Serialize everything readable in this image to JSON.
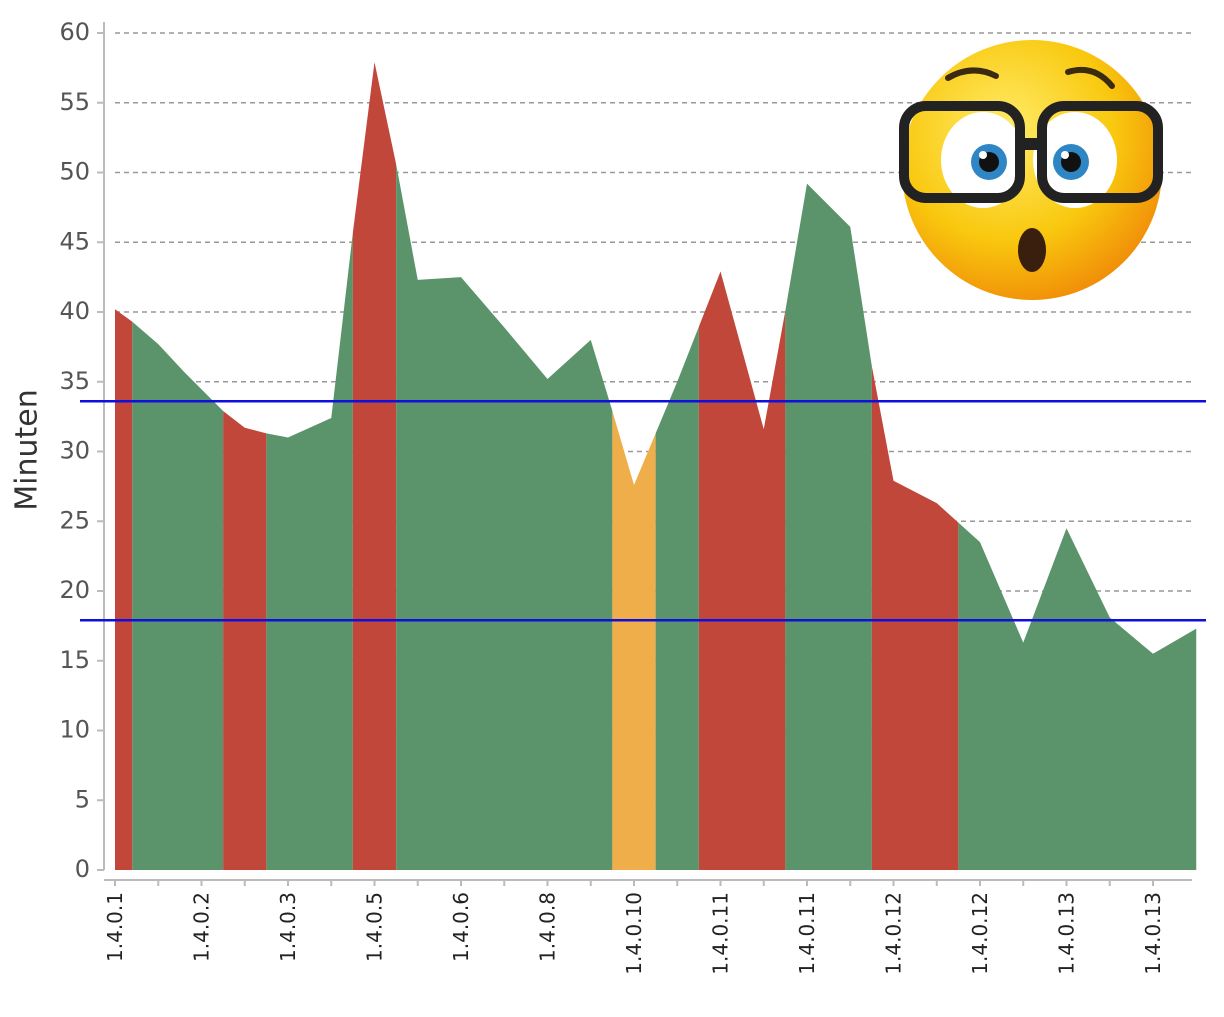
{
  "chart_data": {
    "type": "area",
    "ylabel": "Minuten",
    "xlabel": "",
    "ylim": [
      0,
      60
    ],
    "yticks": [
      0,
      5,
      10,
      15,
      20,
      25,
      30,
      35,
      40,
      45,
      50,
      55,
      60
    ],
    "grid": "horizontal dashed",
    "xtick_labels": [
      "1.4.0.1",
      "1.4.0.2",
      "1.4.0.3",
      "1.4.0.5",
      "1.4.0.6",
      "1.4.0.8",
      "1.4.0.10",
      "1.4.0.11",
      "1.4.0.11",
      "1.4.0.12",
      "1.4.0.12",
      "1.4.0.13",
      "1.4.0.13"
    ],
    "build_index": [
      0,
      0.2,
      0.5,
      0.8,
      1.25,
      1.5,
      1.75,
      2.0,
      2.5,
      2.75,
      3.0,
      3.25,
      3.5,
      4.0,
      4.5,
      5.0,
      5.5,
      5.75,
      6.0,
      6.25,
      6.5,
      7.0,
      7.5,
      7.75,
      8.0,
      8.5,
      8.75,
      9.0,
      9.5,
      10.0,
      10.5,
      11.0,
      11.5,
      12.0,
      12.5
    ],
    "minutes": [
      40.2,
      39.3,
      37.7,
      35.7,
      32.9,
      31.7,
      31.3,
      31.0,
      32.4,
      45.7,
      57.9,
      50.6,
      42.3,
      42.5,
      38.9,
      35.2,
      38.0,
      32.9,
      27.6,
      31.3,
      35.0,
      42.9,
      31.6,
      40.1,
      49.2,
      46.1,
      36.1,
      27.9,
      26.3,
      23.5,
      16.3,
      24.5,
      18.1,
      15.5,
      17.3
    ],
    "status_bands": [
      {
        "from": 0,
        "to": 0.2,
        "status": "red"
      },
      {
        "from": 0.2,
        "to": 1.25,
        "status": "green"
      },
      {
        "from": 1.25,
        "to": 1.75,
        "status": "red"
      },
      {
        "from": 1.75,
        "to": 2.75,
        "status": "green"
      },
      {
        "from": 2.75,
        "to": 3.25,
        "status": "red"
      },
      {
        "from": 3.25,
        "to": 5.75,
        "status": "green"
      },
      {
        "from": 5.75,
        "to": 6.25,
        "status": "orange"
      },
      {
        "from": 6.25,
        "to": 6.75,
        "status": "green"
      },
      {
        "from": 6.75,
        "to": 7.75,
        "status": "red"
      },
      {
        "from": 7.75,
        "to": 8.75,
        "status": "green"
      },
      {
        "from": 8.75,
        "to": 9.75,
        "status": "red"
      },
      {
        "from": 9.75,
        "to": 12.5,
        "status": "green"
      }
    ],
    "reference_lines": [
      33.6,
      17.9
    ],
    "colors": {
      "green": "#5b946a",
      "red": "#c0473a",
      "orange": "#efae49",
      "reference": "#1010dd",
      "grid": "#999999",
      "axis": "#bbbbbb"
    }
  },
  "emoji": {
    "name": "surprised-nerd-emoji",
    "face_color": "#f9c80e",
    "iris_color": "#2f86c4",
    "frame_color": "#222222"
  }
}
